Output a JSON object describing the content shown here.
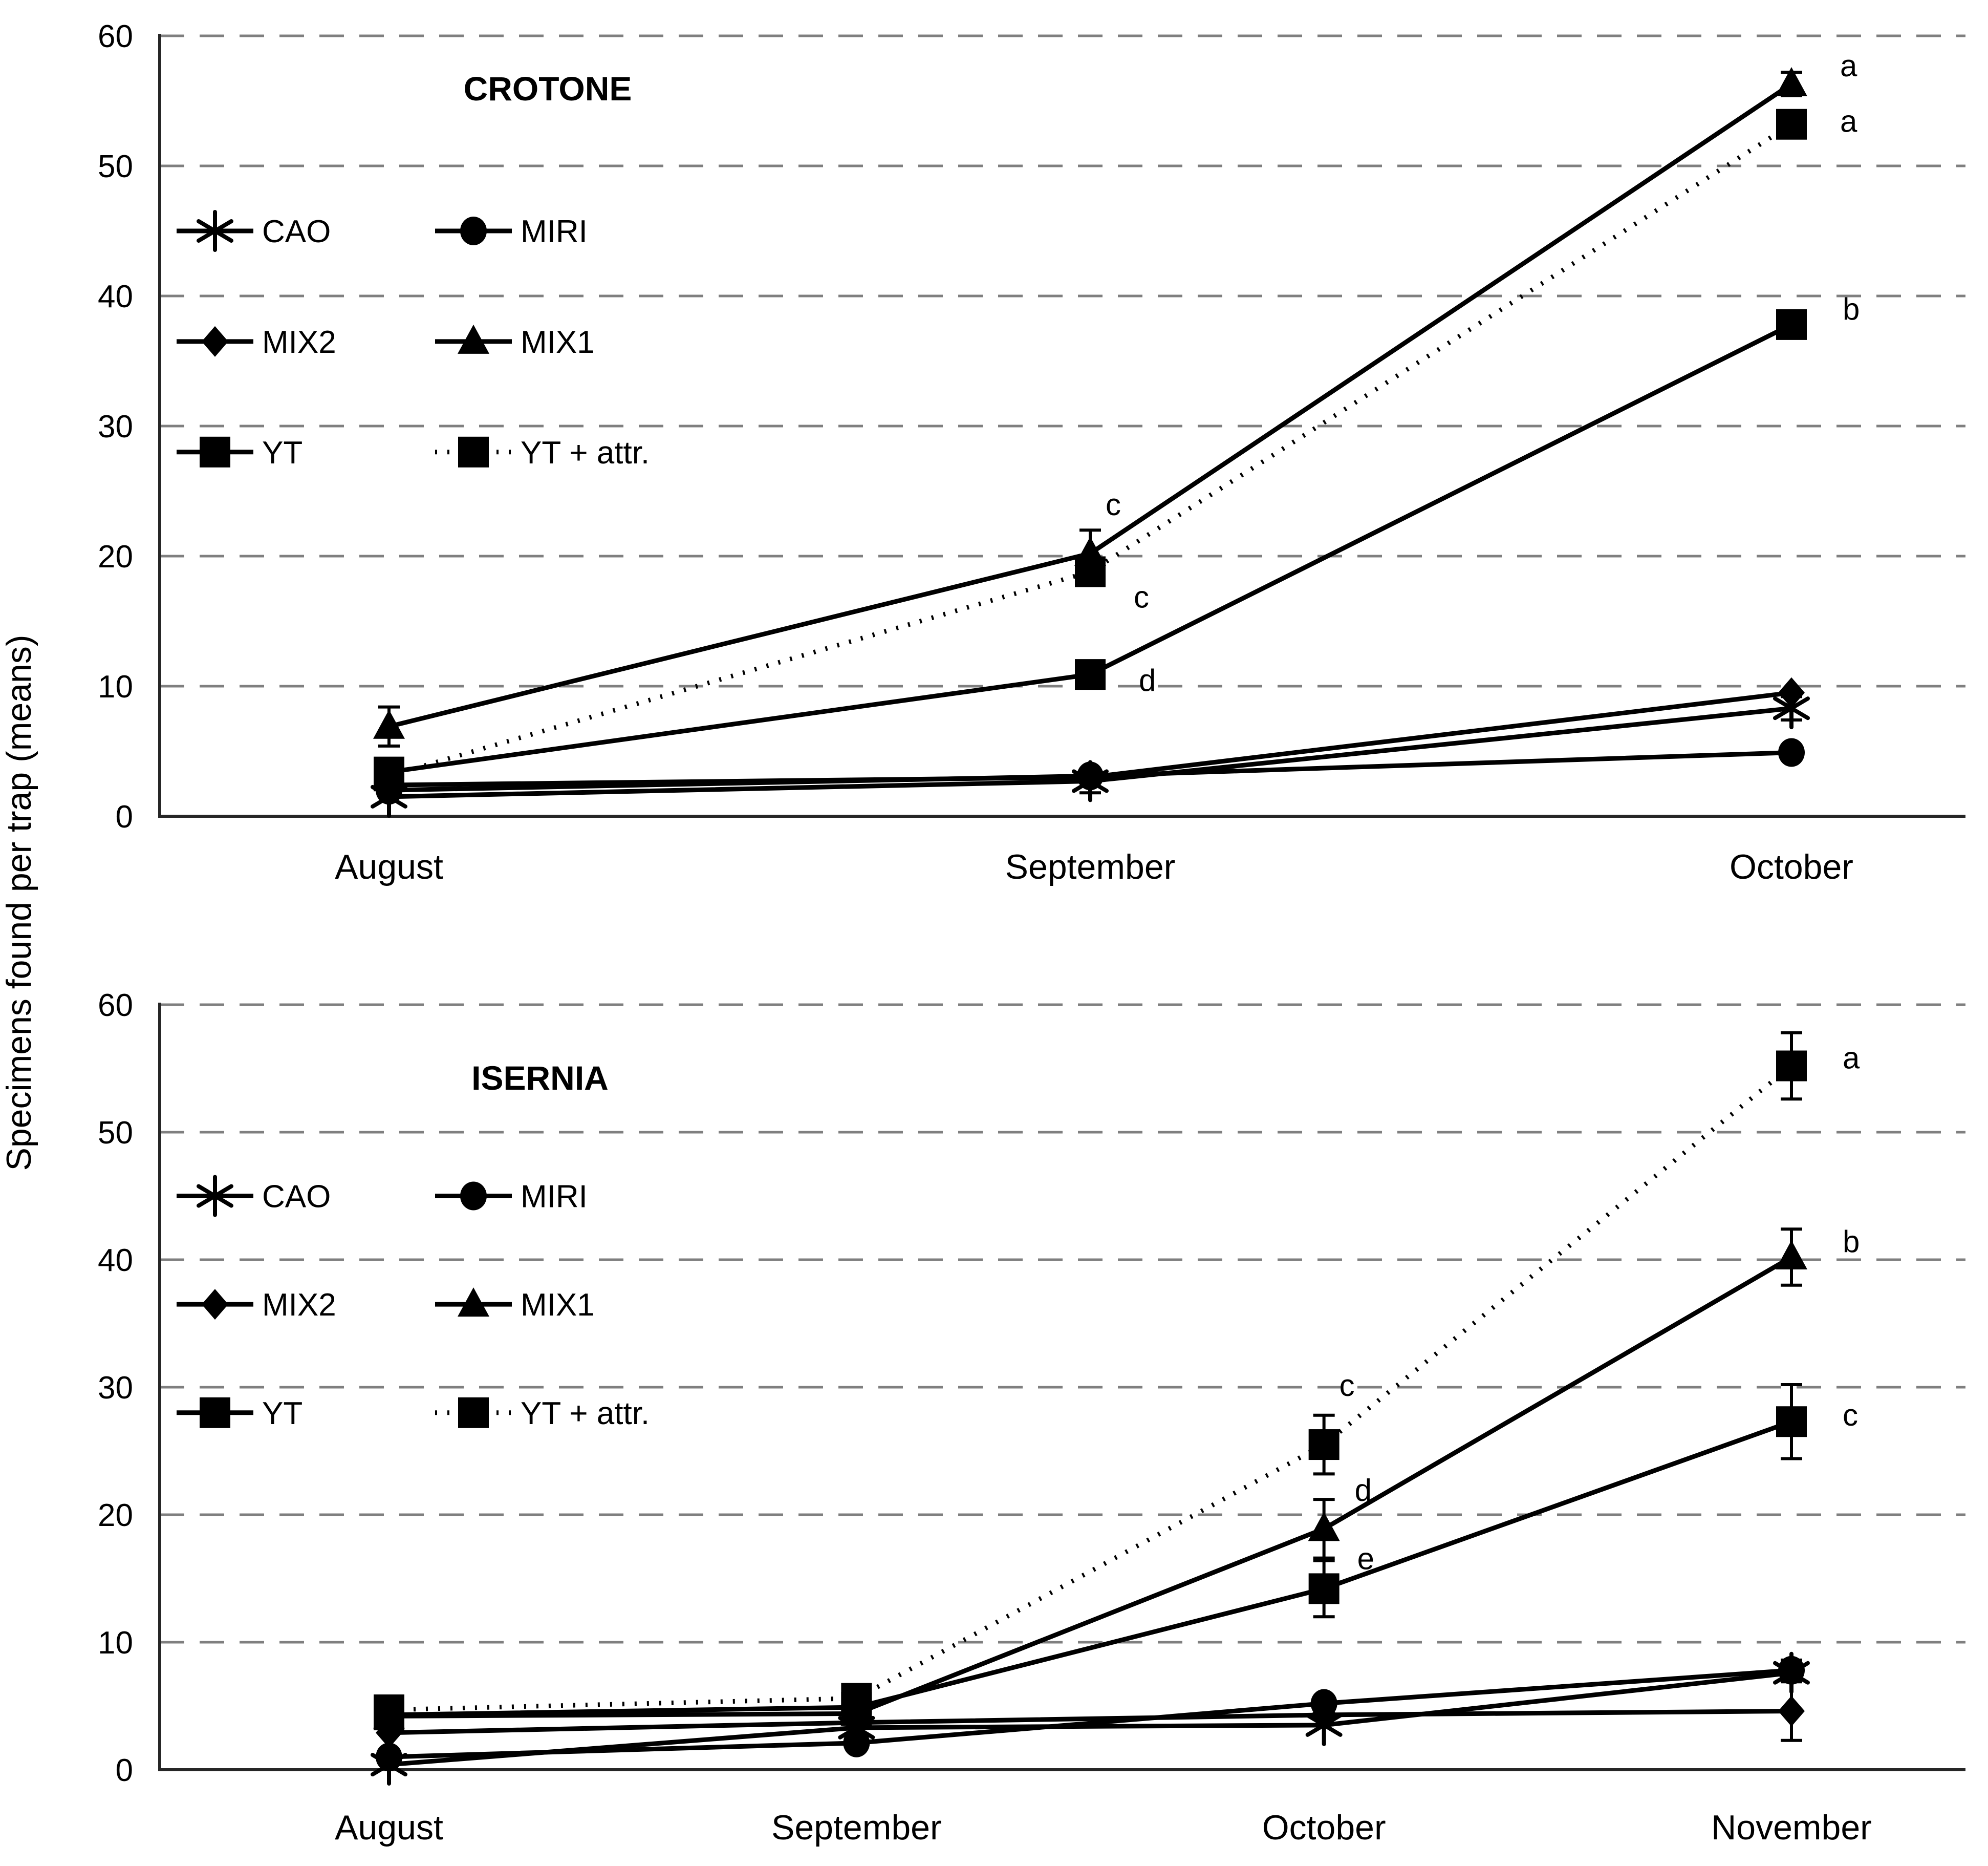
{
  "figure": {
    "ylabel": "Specimens found per trap (means)"
  },
  "chart_data": [
    {
      "type": "line",
      "title": "CROTONE",
      "categories": [
        "August",
        "September",
        "October"
      ],
      "ylabel": "Specimens found per trap (means)",
      "ylim": [
        0,
        60
      ],
      "ytick_step": 10,
      "grid": true,
      "legend_position": "inside-top-left",
      "series": [
        {
          "name": "CAO",
          "marker": "asterisk",
          "line": "solid",
          "values": [
            1.5,
            2.7,
            8.3
          ],
          "err": [
            null,
            0.9,
            0.9
          ],
          "labels": []
        },
        {
          "name": "MIRI",
          "marker": "circle",
          "line": "solid",
          "values": [
            2.0,
            3.1,
            4.9
          ],
          "err": [
            null,
            null,
            null
          ],
          "labels": []
        },
        {
          "name": "MIX2",
          "marker": "diamond",
          "line": "solid",
          "values": [
            2.4,
            3.0,
            9.5
          ],
          "err": [
            null,
            null,
            null
          ],
          "labels": []
        },
        {
          "name": "MIX1",
          "marker": "triangle",
          "line": "solid",
          "values": [
            6.9,
            20.2,
            56.3
          ],
          "err": [
            1.5,
            1.8,
            0.9
          ],
          "labels": [
            {
              "i": 1,
              "t": "c",
              "dx": 30,
              "dy": -95
            },
            {
              "i": 2,
              "t": "a",
              "dx": 95,
              "dy": -35
            }
          ]
        },
        {
          "name": "YT",
          "marker": "square",
          "line": "solid",
          "values": [
            3.4,
            10.9,
            37.8
          ],
          "err": [
            null,
            null,
            0.9
          ],
          "labels": [
            {
              "i": 1,
              "t": "d",
              "dx": 95,
              "dy": 12
            },
            {
              "i": 2,
              "t": "b",
              "dx": 100,
              "dy": -30
            }
          ]
        },
        {
          "name": "YT + attr.",
          "marker": "square",
          "line": "dotted",
          "values": [
            3.1,
            18.8,
            53.2
          ],
          "err": [
            null,
            null,
            null
          ],
          "labels": [
            {
              "i": 1,
              "t": "c",
              "dx": 85,
              "dy": 50
            },
            {
              "i": 2,
              "t": "a",
              "dx": 95,
              "dy": -5
            }
          ]
        }
      ]
    },
    {
      "type": "line",
      "title": "ISERNIA",
      "categories": [
        "August",
        "September",
        "October",
        "November"
      ],
      "ylabel": "Specimens found per trap (means)",
      "ylim": [
        0,
        60
      ],
      "ytick_step": 10,
      "grid": true,
      "legend_position": "inside-top-left",
      "series": [
        {
          "name": "CAO",
          "marker": "asterisk",
          "line": "solid",
          "values": [
            0.4,
            3.3,
            3.5,
            7.6
          ],
          "err": [
            null,
            null,
            null,
            null
          ],
          "labels": []
        },
        {
          "name": "MIRI",
          "marker": "circle",
          "line": "solid",
          "values": [
            1.0,
            2.1,
            5.2,
            7.8
          ],
          "err": [
            null,
            null,
            null,
            0.8
          ],
          "labels": []
        },
        {
          "name": "MIX2",
          "marker": "diamond",
          "line": "solid",
          "values": [
            2.9,
            3.7,
            4.3,
            4.6
          ],
          "err": [
            null,
            null,
            null,
            2.3
          ],
          "labels": []
        },
        {
          "name": "MIX1",
          "marker": "triangle",
          "line": "solid",
          "values": [
            4.2,
            4.4,
            18.9,
            40.2
          ],
          "err": [
            null,
            null,
            2.3,
            2.2
          ],
          "labels": [
            {
              "i": 2,
              "t": "d",
              "dx": 60,
              "dy": -75
            },
            {
              "i": 3,
              "t": "b",
              "dx": 100,
              "dy": -30
            }
          ]
        },
        {
          "name": "YT",
          "marker": "square",
          "line": "solid",
          "values": [
            4.3,
            4.9,
            14.2,
            27.3
          ],
          "err": [
            0.6,
            null,
            2.2,
            2.9
          ],
          "labels": [
            {
              "i": 2,
              "t": "e",
              "dx": 65,
              "dy": -58
            },
            {
              "i": 3,
              "t": "c",
              "dx": 100,
              "dy": -12
            }
          ]
        },
        {
          "name": "YT + attr.",
          "marker": "square",
          "line": "dotted",
          "values": [
            4.7,
            5.6,
            25.5,
            55.2
          ],
          "err": [
            null,
            null,
            2.3,
            2.6
          ],
          "labels": [
            {
              "i": 2,
              "t": "c",
              "dx": 30,
              "dy": -115
            },
            {
              "i": 3,
              "t": "a",
              "dx": 100,
              "dy": -15
            }
          ]
        }
      ]
    }
  ]
}
